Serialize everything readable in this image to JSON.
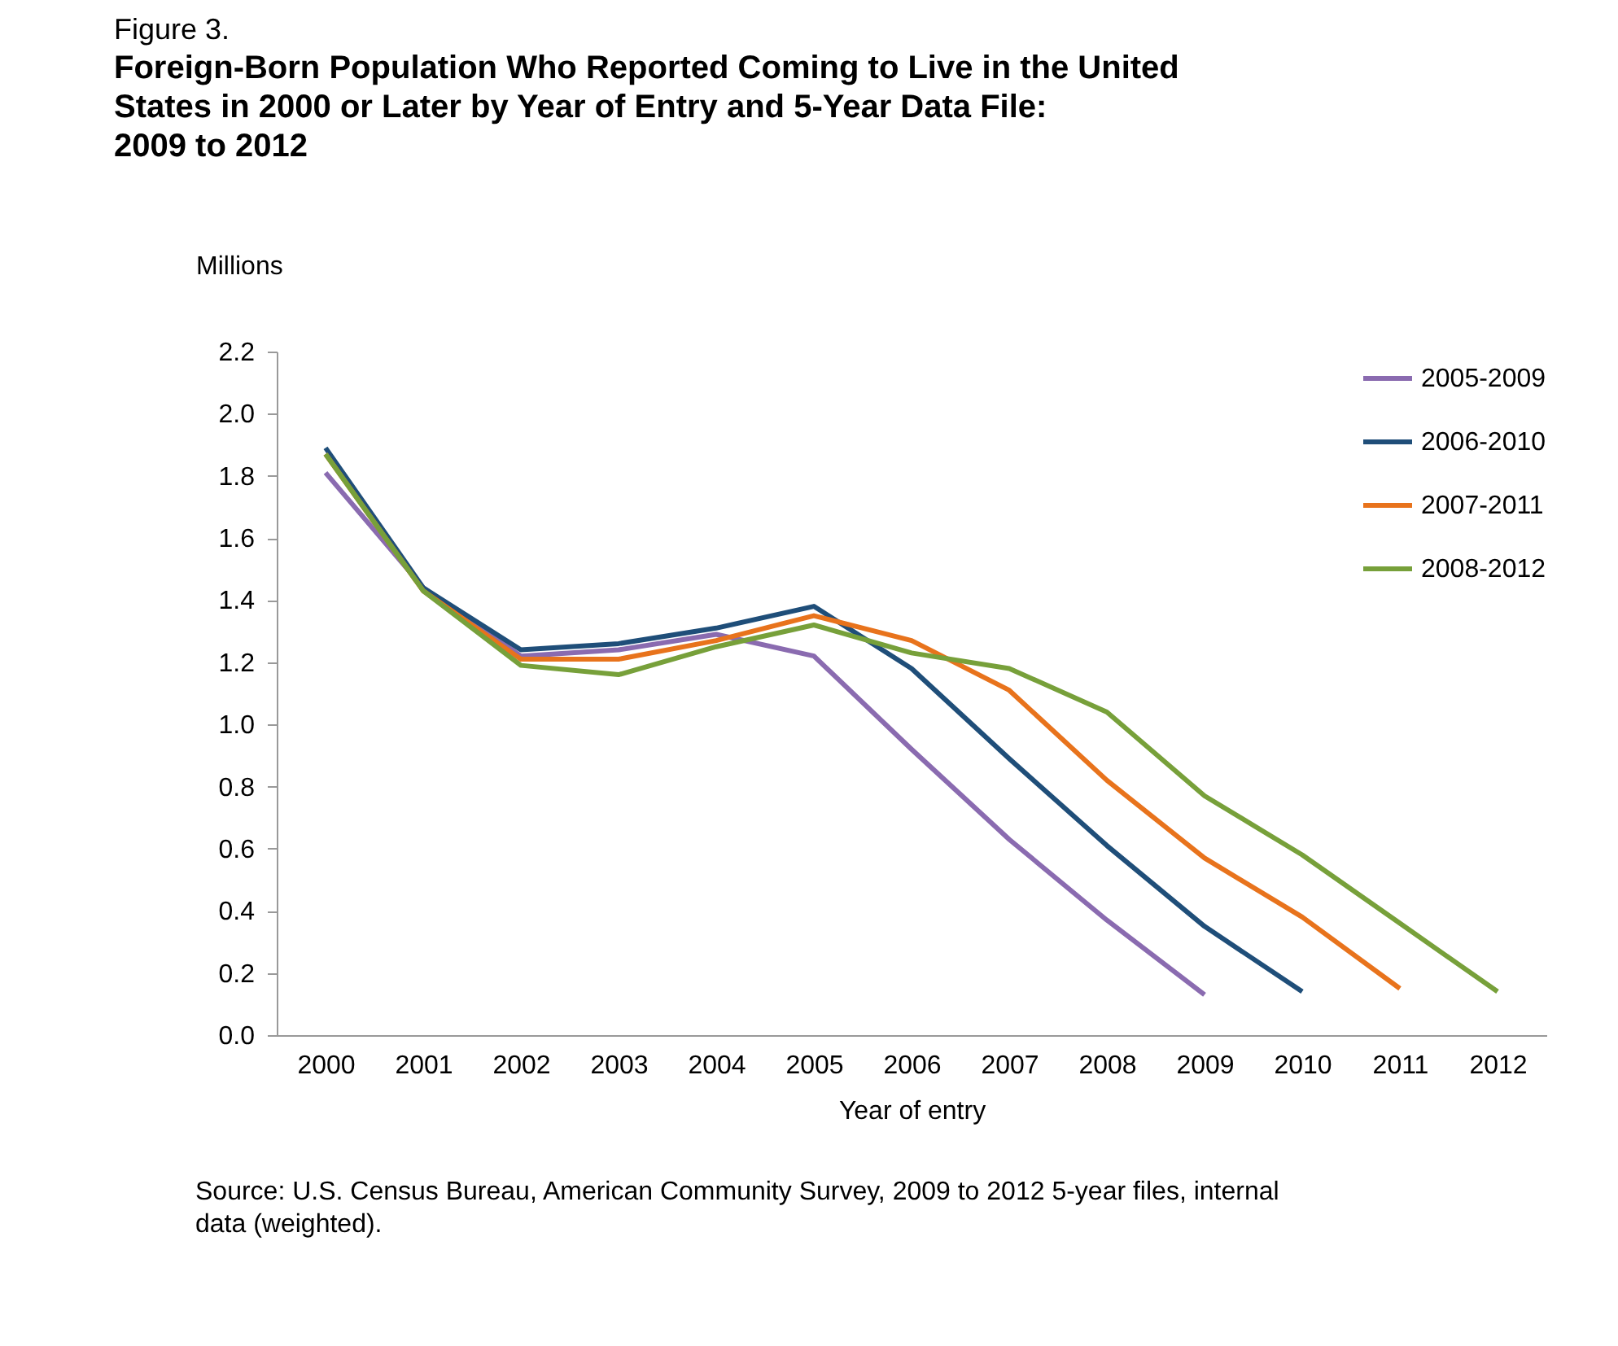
{
  "chart_data": {
    "type": "line",
    "title": "Figure 3.",
    "subtitle": "Foreign-Born Population Who Reported Coming to Live in the United States in 2000 or Later by Year of Entry and 5-Year Data File: 2009 to 2012",
    "xlabel": "Year of entry",
    "ylabel": "Millions",
    "annotations": [
      "Source: U.S. Census Bureau, American Community Survey, 2009 to 2012 5-year files, internal data (weighted)."
    ],
    "categories": [
      "2000",
      "2001",
      "2002",
      "2003",
      "2004",
      "2005",
      "2006",
      "2007",
      "2008",
      "2009",
      "2010",
      "2011",
      "2012"
    ],
    "series": [
      {
        "name": "2005-2009",
        "color": "#8a6bb0",
        "values": [
          1.81,
          1.44,
          1.22,
          1.24,
          1.29,
          1.22,
          0.92,
          0.63,
          0.37,
          0.13,
          null,
          null,
          null
        ]
      },
      {
        "name": "2006-2010",
        "color": "#1f4e79",
        "values": [
          1.89,
          1.44,
          1.24,
          1.26,
          1.31,
          1.38,
          1.18,
          0.89,
          0.61,
          0.35,
          0.14,
          null,
          null
        ]
      },
      {
        "name": "2007-2011",
        "color": "#e8731c",
        "values": [
          1.87,
          1.43,
          1.21,
          1.21,
          1.27,
          1.35,
          1.27,
          1.11,
          0.82,
          0.57,
          0.38,
          0.15,
          null
        ]
      },
      {
        "name": "2008-2012",
        "color": "#77a03a",
        "values": [
          1.87,
          1.43,
          1.19,
          1.16,
          1.25,
          1.32,
          1.23,
          1.18,
          1.04,
          0.77,
          0.58,
          0.36,
          0.14
        ]
      }
    ],
    "ylim": [
      0,
      2.2
    ],
    "yticks": [
      {
        "value": 0,
        "label": "0.0"
      },
      {
        "value": 0.2,
        "label": "0.2"
      },
      {
        "value": 0.4,
        "label": "0.4"
      },
      {
        "value": 0.6,
        "label": "0.6"
      },
      {
        "value": 0.8,
        "label": "0.8"
      },
      {
        "value": 1.0,
        "label": "1.0"
      },
      {
        "value": 1.2,
        "label": "1.2"
      },
      {
        "value": 1.4,
        "label": "1.4"
      },
      {
        "value": 1.6,
        "label": "1.6"
      },
      {
        "value": 1.8,
        "label": "1.8"
      },
      {
        "value": 2.0,
        "label": "2.0"
      },
      {
        "value": 2.2,
        "label": "2.2"
      }
    ],
    "grid": false,
    "legend": "top right",
    "marker": "none",
    "line_style": "solid"
  }
}
